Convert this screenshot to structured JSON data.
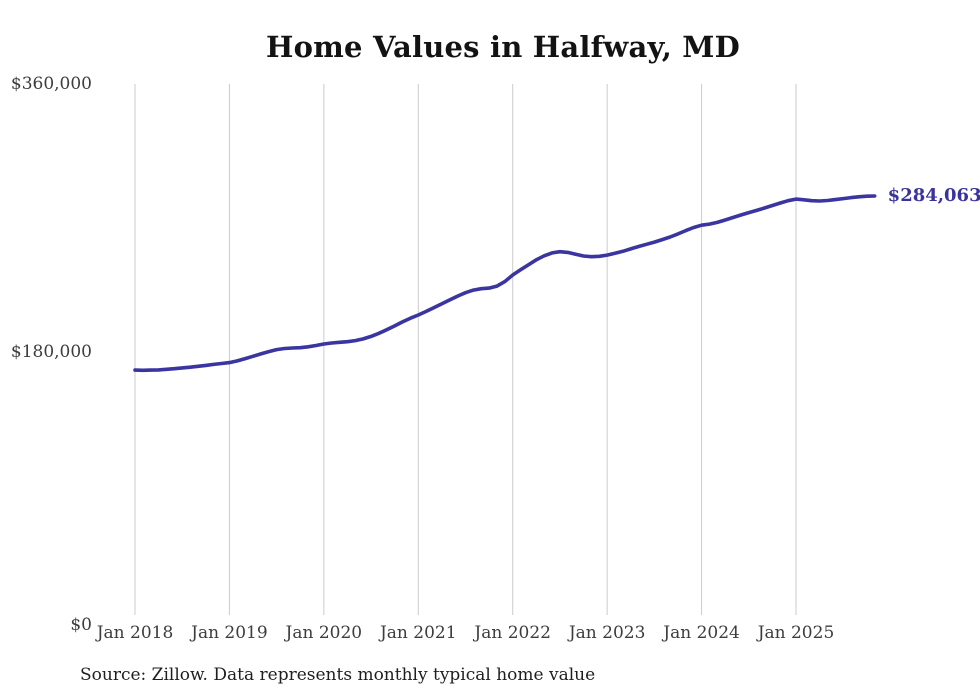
{
  "chart": {
    "title": "Home Values in Halfway, MD",
    "source": "Source: Zillow. Data represents monthly typical home value",
    "end_label": "$284,063"
  },
  "chart_data": {
    "type": "line",
    "title": "Home Values in Halfway, MD",
    "source": "Source: Zillow. Data represents monthly typical home value",
    "x_start": "2018-01",
    "x_frequency": "monthly",
    "values": [
      166000,
      165900,
      166000,
      166200,
      166600,
      167000,
      167500,
      168000,
      168600,
      169200,
      169900,
      170500,
      171100,
      172300,
      173800,
      175400,
      177000,
      178600,
      179900,
      180700,
      181000,
      181200,
      181800,
      182700,
      183700,
      184400,
      184900,
      185300,
      186000,
      187200,
      188900,
      191000,
      193400,
      196000,
      198700,
      201200,
      203400,
      205800,
      208400,
      211000,
      213600,
      216200,
      218500,
      220300,
      221200,
      221600,
      223000,
      226000,
      230500,
      234000,
      237500,
      240800,
      243500,
      245500,
      246300,
      245800,
      244600,
      243400,
      242900,
      243200,
      244000,
      245200,
      246600,
      248200,
      249800,
      251300,
      252800,
      254500,
      256300,
      258400,
      260600,
      262700,
      264300,
      265000,
      266200,
      267800,
      269500,
      271200,
      272800,
      274300,
      275900,
      277600,
      279300,
      280900,
      282000,
      281500,
      280900,
      280700,
      281000,
      281600,
      282300,
      283000,
      283500,
      283900,
      284063
    ],
    "last_point_value": 284063,
    "last_point_label": "$284,063",
    "x_tick_labels": [
      "Jan 2018",
      "Jan 2019",
      "Jan 2020",
      "Jan 2021",
      "Jan 2022",
      "Jan 2023",
      "Jan 2024",
      "Jan 2025"
    ],
    "x_tick_month_indices": [
      0,
      12,
      24,
      36,
      48,
      60,
      72,
      84
    ],
    "y_ticks": [
      {
        "value": 0,
        "label": "$0"
      },
      {
        "value": 180000,
        "label": "$180,000"
      },
      {
        "value": 360000,
        "label": "$360,000"
      }
    ],
    "y_axis_range": [
      0,
      360000
    ],
    "grid": "vertical-only",
    "legend": "none",
    "line_color": "#3A35A1",
    "end_label_color": "#39339B",
    "grid_color": "#cbcbcb",
    "tick_color": "#3d3d3d"
  }
}
